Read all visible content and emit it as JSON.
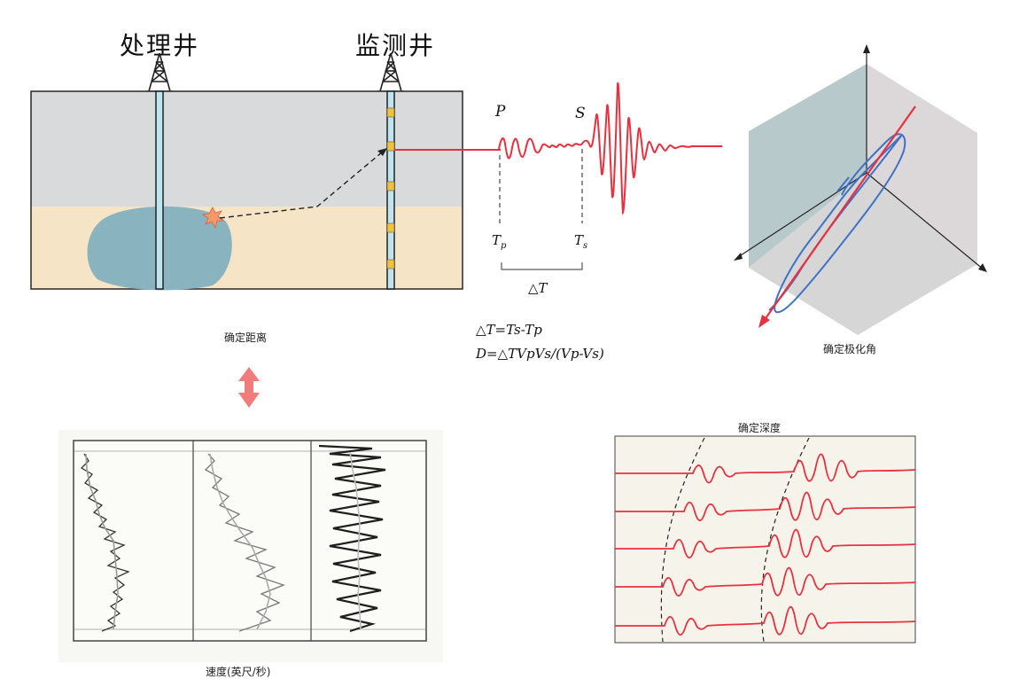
{
  "wells": {
    "treatment_well": "处理井",
    "monitoring_well": "监测井"
  },
  "waveform": {
    "p_label": "P",
    "s_label": "S",
    "tp_label": "T",
    "tp_sub": "p",
    "ts_label": "T",
    "ts_sub": "s",
    "delta_t": "△T"
  },
  "formulas": {
    "line1": "△T=Ts-Tp",
    "line2": "D=△TVpVs/(Vp-Vs)"
  },
  "captions": {
    "distance": "确定距离",
    "polarization": "确定极化角",
    "depth": "确定深度",
    "velocity": "速度(英尺/秒)"
  },
  "colors": {
    "sky": "#d9dadb",
    "ground": "#f5e4c6",
    "fracture": "#88b3bf",
    "signal": "#e8303e",
    "polar_trace": "#3f72c4",
    "arrow_pink": "#f27b7b",
    "geophone": "#f2c23a"
  }
}
